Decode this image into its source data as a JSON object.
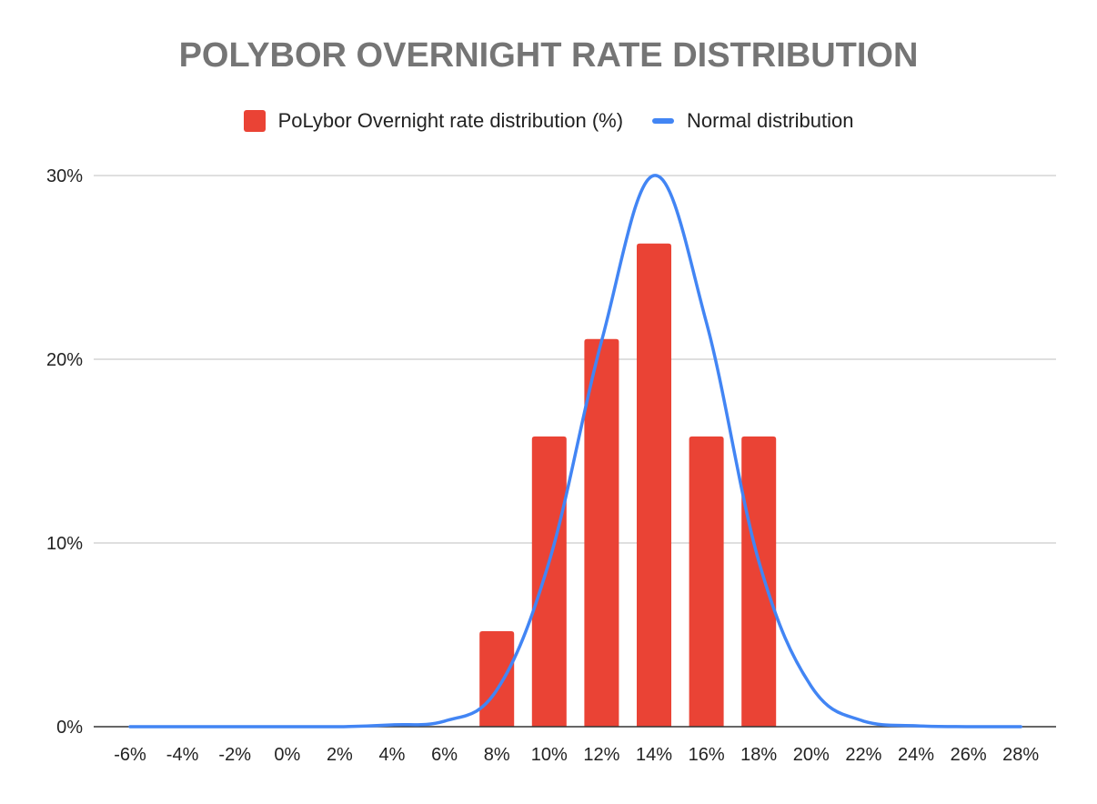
{
  "chart_data": {
    "type": "bar",
    "title": "POLYBOR OVERNIGHT RATE DISTRIBUTION",
    "xlabel": "",
    "ylabel": "",
    "ylim": [
      0,
      30
    ],
    "y_ticks": [
      "0%",
      "10%",
      "20%",
      "30%"
    ],
    "y_tick_values": [
      0,
      10,
      20,
      30
    ],
    "categories": [
      "-6%",
      "-4%",
      "-2%",
      "0%",
      "2%",
      "4%",
      "6%",
      "8%",
      "10%",
      "12%",
      "14%",
      "16%",
      "18%",
      "20%",
      "22%",
      "24%",
      "26%",
      "28%"
    ],
    "series": [
      {
        "name": "PoLybor Overnight rate distribution (%)",
        "kind": "bar",
        "color": "#ea4335",
        "values": [
          0,
          0,
          0,
          0,
          0,
          0,
          0,
          5.2,
          15.8,
          21.1,
          26.3,
          15.8,
          15.8,
          0,
          0,
          0,
          0,
          0
        ]
      },
      {
        "name": "Normal distribution",
        "kind": "line",
        "color": "#4285f4",
        "values": [
          0,
          0,
          0,
          0,
          0,
          0.1,
          0.3,
          2.0,
          9.0,
          21.0,
          30.0,
          22.0,
          9.0,
          2.2,
          0.3,
          0.05,
          0,
          0
        ]
      }
    ],
    "legend_position": "top",
    "grid": true
  }
}
